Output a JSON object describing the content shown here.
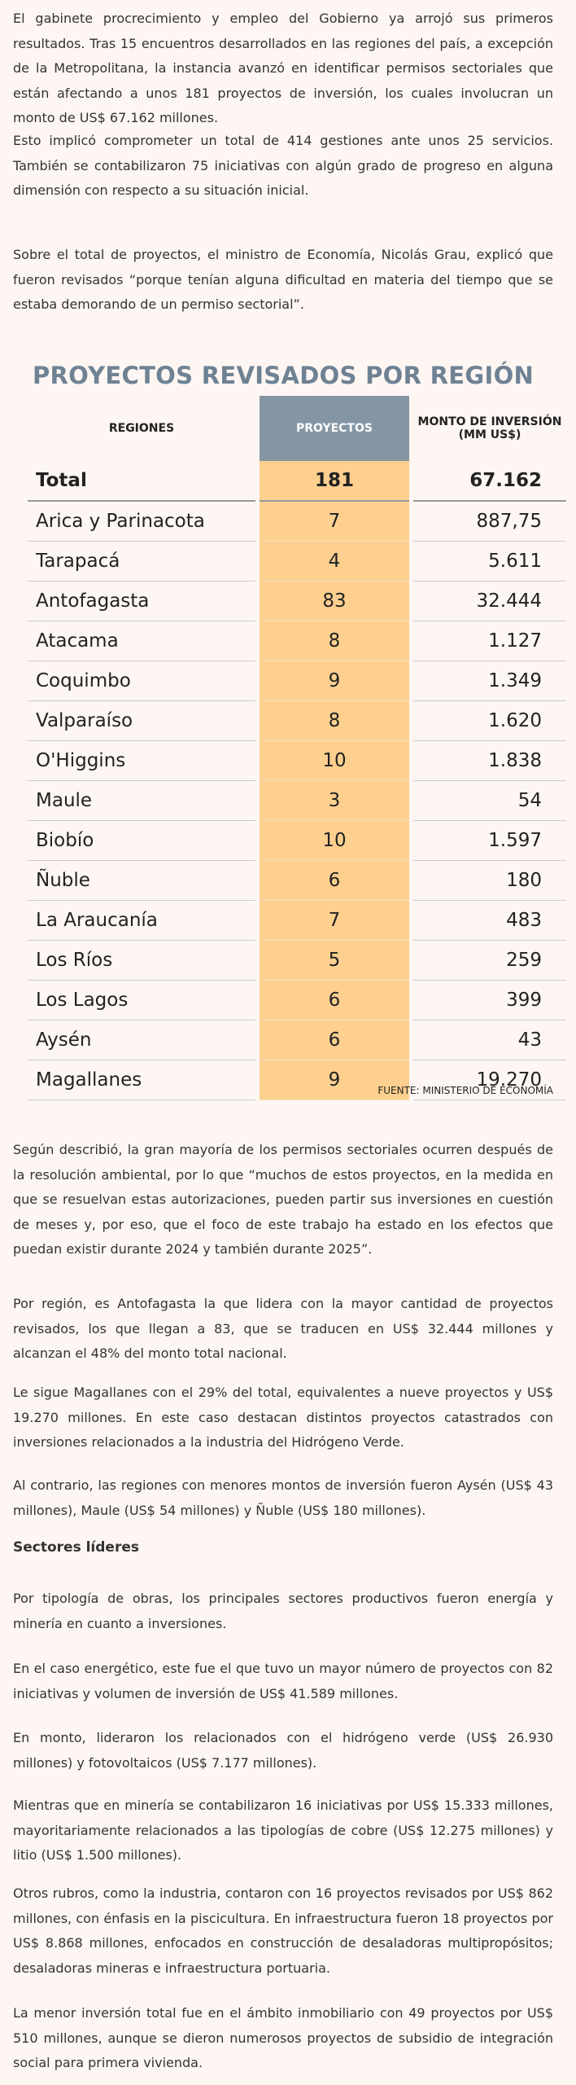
{
  "paragraphs_top": [
    "El gabinete procrecimiento y empleo del Gobierno ya arrojó sus primeros resultados. Tras 15 encuentros desarrollados en las regiones del país, a excepción de la Metropolitana, la instancia avanzó en identificar permisos sectoriales que están afectando a unos 181 proyectos de inversión, los cuales involucran un monto de US$ 67.162 millones.",
    "Esto implicó comprometer un total de 414 gestiones ante unos 25 servicios. También se contabilizaron 75 iniciativas con algún grado de progreso en alguna dimensión con respecto a su situación inicial.",
    "Sobre el total de proyectos, el ministro de Economía, Nicolás Grau, explicó que fueron revisados “porque tenían alguna dificultad en materia del tiempo que se estaba demorando de un permiso sectorial”."
  ],
  "table": {
    "title": "PROYECTOS REVISADOS POR REGIÓN",
    "headers": [
      "REGIONES",
      "PROYECTOS",
      "MONTO DE INVERSIÓN (MM US$)"
    ],
    "rows": [
      [
        "Total",
        "181",
        "67.162"
      ],
      [
        "Arica y Parinacota",
        "7",
        "887,75"
      ],
      [
        "Tarapacá",
        "4",
        "5.611"
      ],
      [
        "Antofagasta",
        "83",
        "32.444"
      ],
      [
        "Atacama",
        "8",
        "1.127"
      ],
      [
        "Coquimbo",
        "9",
        "1.349"
      ],
      [
        "Valparaíso",
        "8",
        "1.620"
      ],
      [
        "O'Higgins",
        "10",
        "1.838"
      ],
      [
        "Maule",
        "3",
        "54"
      ],
      [
        "Biobío",
        "10",
        "1.597"
      ],
      [
        "Ñuble",
        "6",
        "180"
      ],
      [
        "La Araucanía",
        "7",
        "483"
      ],
      [
        "Los Ríos",
        "5",
        "259"
      ],
      [
        "Los Lagos",
        "6",
        "399"
      ],
      [
        "Aysén",
        "6",
        "43"
      ],
      [
        "Magallanes",
        "9",
        "19.270"
      ]
    ],
    "source": "FUENTE: MINISTERIO DE ECONOMÍA"
  },
  "paragraphs_mid": [
    "Según describió, la gran mayoría de los permisos sectoriales ocurren después de la resolución ambiental, por lo que “muchos de estos proyectos, en la medida en que se resuelvan estas autorizaciones, pueden partir sus inversiones en cuestión de meses y, por eso, que el foco de este trabajo ha estado en los efectos que puedan existir durante 2024 y también durante 2025”.",
    "Por región, es Antofagasta la que lidera con la mayor cantidad de proyectos revisados, los que llegan a 83, que se traducen en US$ 32.444 millones y alcanzan el 48% del monto total nacional.",
    "Le sigue Magallanes con el 29% del total, equivalentes a nueve proyectos y US$ 19.270 millones. En este caso destacan distintos proyectos catastrados con inversiones relacionados a la industria del Hidrógeno Verde.",
    "Al contrario, las regiones con menores montos de inversión fueron Aysén (US$ 43 millones), Maule (US$ 54 millones) y Ñuble (US$ 180 millones)."
  ],
  "heading": "Sectores líderes",
  "paragraphs_bottom": [
    "Por tipología de obras, los principales sectores productivos fueron energía y minería en cuanto a inversiones.",
    "En el caso energético, este fue el que tuvo un mayor número de proyectos con 82 iniciativas y volumen de inversión de US$ 41.589 millones.",
    "En monto, lideraron los relacionados con el hidrógeno verde (US$ 26.930 millones) y fotovoltaicos (US$ 7.177 millones).",
    "Mientras que en minería se contabilizaron 16 iniciativas por US$ 15.333 millones, mayoritariamente relacionados a las tipologías de cobre (US$ 12.275 millones) y litio (US$ 1.500 millones).",
    "Otros rubros, como la industria, contaron con 16 proyectos revisados por US$ 862 millones, con énfasis en la piscicultura. En infraestructura fueron 18 proyectos por US$ 8.868 millones, enfocados en construcción de desaladoras multipropósitos; desaladoras mineras e infraestructura portuaria.",
    "La menor inversión total fue en el ámbito inmobiliario con 49 proyectos por US$ 510 millones, aunque se dieron numerosos proyectos de subsidio de integración social para primera vivienda."
  ]
}
